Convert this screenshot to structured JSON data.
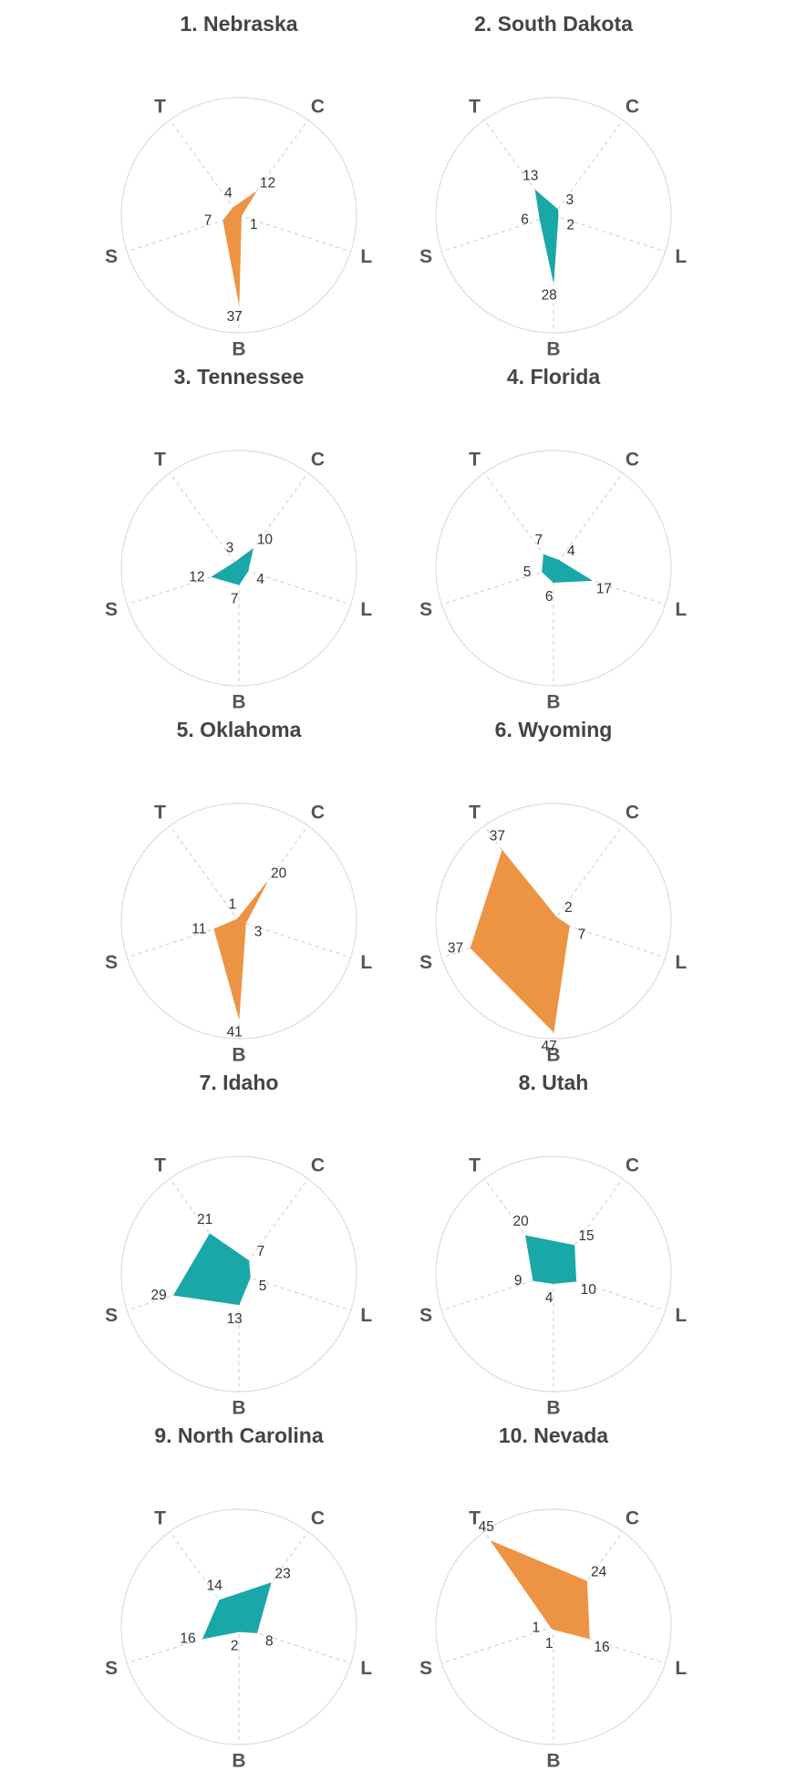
{
  "colors": {
    "orange": "#ed9444",
    "teal": "#1aa7a8",
    "circle": "#dddddd",
    "spoke": "#cccccc",
    "title": "#444444",
    "axis_label": "#555555",
    "value_label": "#333333"
  },
  "chart_data": {
    "type": "radar",
    "axes": [
      "C",
      "L",
      "B",
      "S",
      "T"
    ],
    "rmax": 50,
    "panels": [
      {
        "title": "1. Nebraska",
        "values": [
          12,
          1,
          37,
          7,
          4
        ],
        "color": "orange"
      },
      {
        "title": "2. South Dakota",
        "values": [
          3,
          2,
          28,
          6,
          13
        ],
        "color": "teal"
      },
      {
        "title": "3. Tennessee",
        "values": [
          10,
          4,
          7,
          12,
          3
        ],
        "color": "teal"
      },
      {
        "title": "4. Florida",
        "values": [
          4,
          17,
          6,
          5,
          7
        ],
        "color": "teal"
      },
      {
        "title": "5. Oklahoma",
        "values": [
          20,
          3,
          41,
          11,
          1
        ],
        "color": "orange"
      },
      {
        "title": "6. Wyoming",
        "values": [
          2,
          7,
          47,
          37,
          37
        ],
        "color": "orange"
      },
      {
        "title": "7. Idaho",
        "values": [
          7,
          5,
          13,
          29,
          21
        ],
        "color": "teal"
      },
      {
        "title": "8. Utah",
        "values": [
          15,
          10,
          4,
          9,
          20
        ],
        "color": "teal"
      },
      {
        "title": "9. North Carolina",
        "values": [
          23,
          8,
          2,
          16,
          14
        ],
        "color": "teal"
      },
      {
        "title": "10. Nevada",
        "values": [
          24,
          16,
          1,
          1,
          45
        ],
        "color": "orange"
      }
    ]
  }
}
